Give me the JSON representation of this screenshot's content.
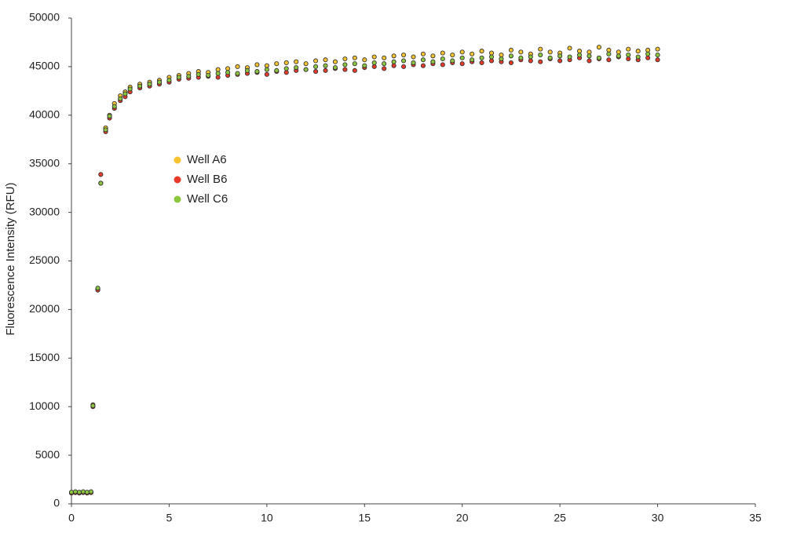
{
  "chart_data": {
    "type": "scatter",
    "y_label": "Fluorescence Intensity (RFU)",
    "xlim": [
      0,
      35
    ],
    "xticks": [
      0,
      5,
      10,
      15,
      20,
      25,
      30,
      35
    ],
    "ylim": [
      0,
      50000
    ],
    "yticks": [
      0,
      5000,
      10000,
      15000,
      20000,
      25000,
      30000,
      35000,
      40000,
      45000,
      50000
    ],
    "x": [
      0,
      0.2,
      0.4,
      0.6,
      0.8,
      1.0,
      1.1,
      1.35,
      1.5,
      1.75,
      1.95,
      2.2,
      2.5,
      2.75,
      3,
      3.5,
      4,
      4.5,
      5,
      5.5,
      6,
      6.5,
      7,
      7.5,
      8,
      8.5,
      9,
      9.5,
      10,
      10.5,
      11,
      11.5,
      12,
      12.5,
      13,
      13.5,
      14,
      14.5,
      15,
      15.5,
      16,
      16.5,
      17,
      17.5,
      18,
      18.5,
      19,
      19.5,
      20,
      20.5,
      21,
      21.5,
      22,
      22.5,
      23,
      23.5,
      24,
      24.5,
      25,
      25.5,
      26,
      26.5,
      27,
      27.5,
      28,
      28.5,
      29,
      29.5,
      30
    ],
    "series": [
      {
        "name": "Well A6",
        "color": "#f7c431",
        "values": [
          1150,
          1200,
          1150,
          1200,
          1150,
          1200,
          10200,
          22100,
          33000,
          38700,
          40000,
          41200,
          42000,
          42400,
          42900,
          43200,
          43400,
          43600,
          43900,
          44100,
          44300,
          44500,
          44400,
          44700,
          44800,
          45000,
          44900,
          45200,
          45100,
          45300,
          45400,
          45500,
          45300,
          45600,
          45700,
          45500,
          45800,
          45900,
          45700,
          46000,
          45900,
          46100,
          46200,
          46000,
          46300,
          46100,
          46400,
          46200,
          46500,
          46300,
          46600,
          46400,
          46200,
          46700,
          46500,
          46300,
          46800,
          46500,
          46400,
          46900,
          46600,
          46500,
          47000,
          46700,
          46500,
          46800,
          46600,
          46700,
          46800
        ]
      },
      {
        "name": "Well B6",
        "color": "#e8392b",
        "values": [
          1100,
          1150,
          1100,
          1150,
          1100,
          1150,
          10000,
          22000,
          33900,
          38300,
          39700,
          40700,
          41500,
          41900,
          42400,
          42800,
          43000,
          43200,
          43400,
          43700,
          43800,
          43900,
          44000,
          43900,
          44100,
          44200,
          44300,
          44400,
          44200,
          44500,
          44400,
          44600,
          44700,
          44500,
          44600,
          44800,
          44700,
          44600,
          44900,
          45000,
          44800,
          45100,
          45000,
          45200,
          45100,
          45300,
          45200,
          45400,
          45300,
          45500,
          45400,
          45600,
          45500,
          45400,
          45700,
          45600,
          45500,
          45800,
          45600,
          45700,
          45900,
          45600,
          45800,
          45700,
          46000,
          45800,
          45700,
          45900,
          45700
        ]
      },
      {
        "name": "Well C6",
        "color": "#8cc63e",
        "values": [
          1200,
          1250,
          1200,
          1250,
          1200,
          1250,
          10100,
          22200,
          33000,
          38500,
          39900,
          40900,
          41700,
          42200,
          42700,
          43000,
          43200,
          43400,
          43600,
          43900,
          44000,
          44200,
          44100,
          44300,
          44400,
          44300,
          44600,
          44500,
          44700,
          44600,
          44800,
          44900,
          44700,
          45000,
          45100,
          44900,
          45200,
          45300,
          45100,
          45400,
          45300,
          45500,
          45600,
          45400,
          45700,
          45500,
          45800,
          45600,
          45900,
          45700,
          45900,
          46000,
          45800,
          46100,
          45900,
          46000,
          46200,
          45900,
          46100,
          46000,
          46200,
          46100,
          45900,
          46300,
          46100,
          46200,
          46000,
          46300,
          46200
        ]
      }
    ]
  }
}
